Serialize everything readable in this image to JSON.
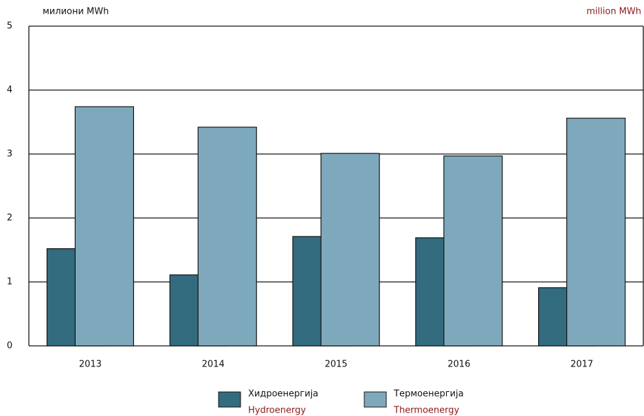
{
  "chart_data": {
    "type": "bar",
    "y_label": "милиони MWh",
    "y_label_en": "million MWh",
    "categories": [
      "2013",
      "2014",
      "2015",
      "2016",
      "2017"
    ],
    "series": [
      {
        "name": "Хидроенергија",
        "name_en": "Hydroenergy",
        "color": "#336b7f",
        "values": [
          1.52,
          1.11,
          1.71,
          1.69,
          0.91
        ]
      },
      {
        "name": "Термоенергија",
        "name_en": "Thermoenergy",
        "color": "#7ea9bc",
        "values": [
          3.74,
          3.42,
          3.01,
          2.97,
          3.56
        ]
      }
    ],
    "ylim": [
      0,
      5
    ],
    "yticks": [
      0,
      1,
      2,
      3,
      4,
      5
    ],
    "grid": true
  }
}
